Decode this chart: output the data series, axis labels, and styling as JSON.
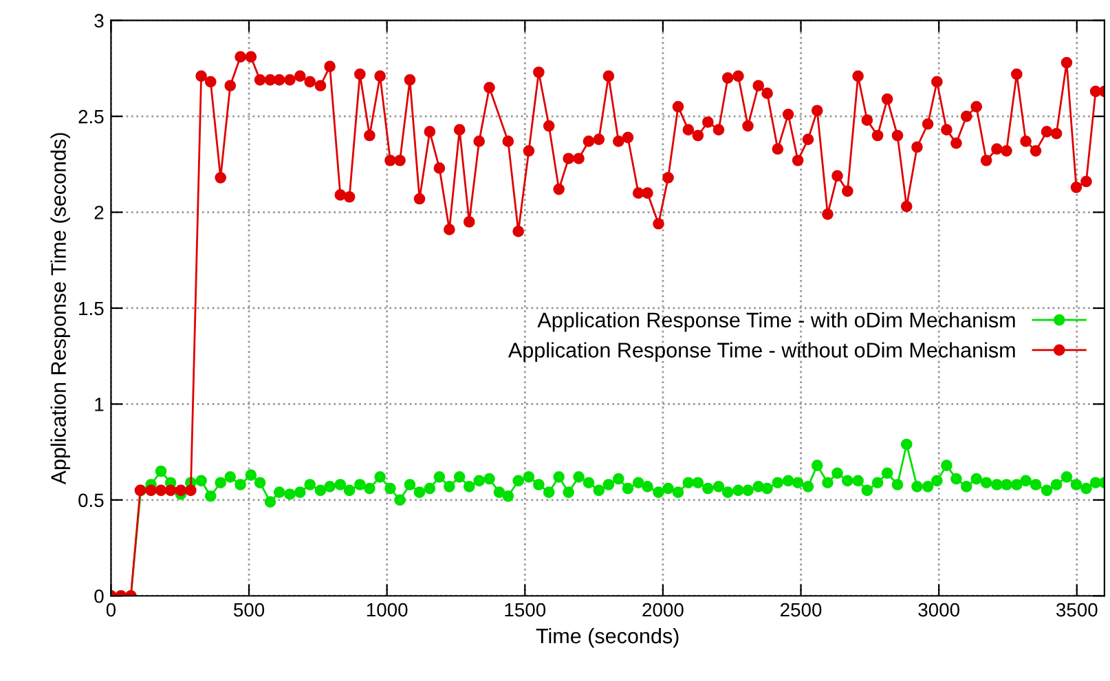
{
  "chart_data": {
    "type": "line",
    "xlabel": "Time (seconds)",
    "ylabel": "Application Response Time (seconds)",
    "xlim": [
      0,
      3600
    ],
    "ylim": [
      0,
      3
    ],
    "xticks": [
      0,
      500,
      1000,
      1500,
      2000,
      2500,
      3000,
      3500
    ],
    "yticks": [
      0,
      {
        "value": 0.5,
        "label": "0.5"
      },
      1,
      {
        "value": 1.5,
        "label": "1.5"
      },
      2,
      {
        "value": 2.5,
        "label": "2.5"
      },
      3
    ],
    "grid": true,
    "legend": "right",
    "marker": "circle",
    "line_style": "solid",
    "series": [
      {
        "name": "Application Response Time - with oDim Mechanism",
        "color": "#00e000",
        "x": [
          0,
          36,
          72,
          108,
          145,
          181,
          216,
          253,
          289,
          327,
          361,
          397,
          432,
          469,
          507,
          540,
          577,
          610,
          648,
          685,
          721,
          759,
          793,
          831,
          864,
          902,
          937,
          975,
          1012,
          1047,
          1083,
          1118,
          1155,
          1190,
          1226,
          1263,
          1298,
          1334,
          1371,
          1407,
          1439,
          1476,
          1514,
          1550,
          1587,
          1623,
          1658,
          1695,
          1731,
          1768,
          1803,
          1839,
          1873,
          1911,
          1944,
          1984,
          2019,
          2055,
          2092,
          2127,
          2163,
          2202,
          2235,
          2273,
          2308,
          2346,
          2378,
          2416,
          2454,
          2489,
          2526,
          2559,
          2597,
          2632,
          2669,
          2707,
          2740,
          2778,
          2813,
          2850,
          2883,
          2921,
          2960,
          2993,
          3028,
          3063,
          3100,
          3136,
          3172,
          3210,
          3245,
          3282,
          3315,
          3351,
          3391,
          3426,
          3463,
          3498,
          3534,
          3568,
          3600
        ],
        "values": [
          0,
          0,
          0,
          0.55,
          0.58,
          0.65,
          0.59,
          0.53,
          0.59,
          0.6,
          0.52,
          0.59,
          0.62,
          0.58,
          0.63,
          0.59,
          0.49,
          0.54,
          0.53,
          0.54,
          0.58,
          0.55,
          0.57,
          0.58,
          0.55,
          0.58,
          0.56,
          0.62,
          0.56,
          0.5,
          0.58,
          0.54,
          0.56,
          0.62,
          0.57,
          0.62,
          0.57,
          0.6,
          0.61,
          0.54,
          0.52,
          0.6,
          0.62,
          0.58,
          0.54,
          0.62,
          0.54,
          0.62,
          0.59,
          0.55,
          0.58,
          0.61,
          0.56,
          0.59,
          0.57,
          0.54,
          0.56,
          0.54,
          0.59,
          0.59,
          0.56,
          0.57,
          0.54,
          0.55,
          0.55,
          0.57,
          0.56,
          0.59,
          0.6,
          0.59,
          0.57,
          0.68,
          0.59,
          0.64,
          0.6,
          0.6,
          0.55,
          0.59,
          0.64,
          0.58,
          0.79,
          0.57,
          0.57,
          0.6,
          0.68,
          0.61,
          0.57,
          0.61,
          0.59,
          0.58,
          0.58,
          0.58,
          0.6,
          0.58,
          0.55,
          0.58,
          0.62,
          0.58,
          0.56,
          0.59,
          0.59
        ]
      },
      {
        "name": "Application Response Time - without oDim Mechanism",
        "color": "#e00000",
        "x": [
          0,
          36,
          72,
          106,
          145,
          181,
          216,
          253,
          289,
          327,
          361,
          397,
          432,
          469,
          507,
          540,
          577,
          610,
          648,
          685,
          721,
          759,
          793,
          831,
          864,
          902,
          937,
          975,
          1012,
          1047,
          1083,
          1118,
          1155,
          1190,
          1226,
          1263,
          1298,
          1334,
          1371,
          1439,
          1476,
          1514,
          1550,
          1587,
          1623,
          1658,
          1695,
          1731,
          1768,
          1803,
          1839,
          1873,
          1911,
          1944,
          1984,
          2019,
          2055,
          2092,
          2127,
          2163,
          2202,
          2235,
          2273,
          2308,
          2346,
          2378,
          2416,
          2454,
          2489,
          2526,
          2559,
          2597,
          2632,
          2669,
          2707,
          2740,
          2778,
          2813,
          2850,
          2883,
          2921,
          2960,
          2993,
          3028,
          3063,
          3100,
          3136,
          3172,
          3210,
          3245,
          3282,
          3315,
          3351,
          3391,
          3426,
          3463,
          3498,
          3534,
          3568,
          3600
        ],
        "values": [
          0,
          0,
          0,
          0.55,
          0.55,
          0.55,
          0.55,
          0.55,
          0.55,
          2.71,
          2.68,
          2.18,
          2.66,
          2.81,
          2.81,
          2.69,
          2.69,
          2.69,
          2.69,
          2.71,
          2.68,
          2.66,
          2.76,
          2.09,
          2.08,
          2.72,
          2.4,
          2.71,
          2.27,
          2.27,
          2.69,
          2.07,
          2.42,
          2.23,
          1.91,
          2.43,
          1.95,
          2.37,
          2.65,
          2.37,
          1.9,
          2.32,
          2.73,
          2.45,
          2.12,
          2.28,
          2.28,
          2.37,
          2.38,
          2.71,
          2.37,
          2.39,
          2.1,
          2.1,
          1.94,
          2.18,
          2.55,
          2.43,
          2.4,
          2.47,
          2.43,
          2.7,
          2.71,
          2.45,
          2.66,
          2.62,
          2.33,
          2.51,
          2.27,
          2.38,
          2.53,
          1.99,
          2.19,
          2.11,
          2.71,
          2.48,
          2.4,
          2.59,
          2.4,
          2.03,
          2.34,
          2.46,
          2.68,
          2.43,
          2.36,
          2.5,
          2.55,
          2.27,
          2.33,
          2.32,
          2.72,
          2.37,
          2.32,
          2.42,
          2.41,
          2.78,
          2.13,
          2.16,
          2.63,
          2.63
        ]
      }
    ]
  }
}
